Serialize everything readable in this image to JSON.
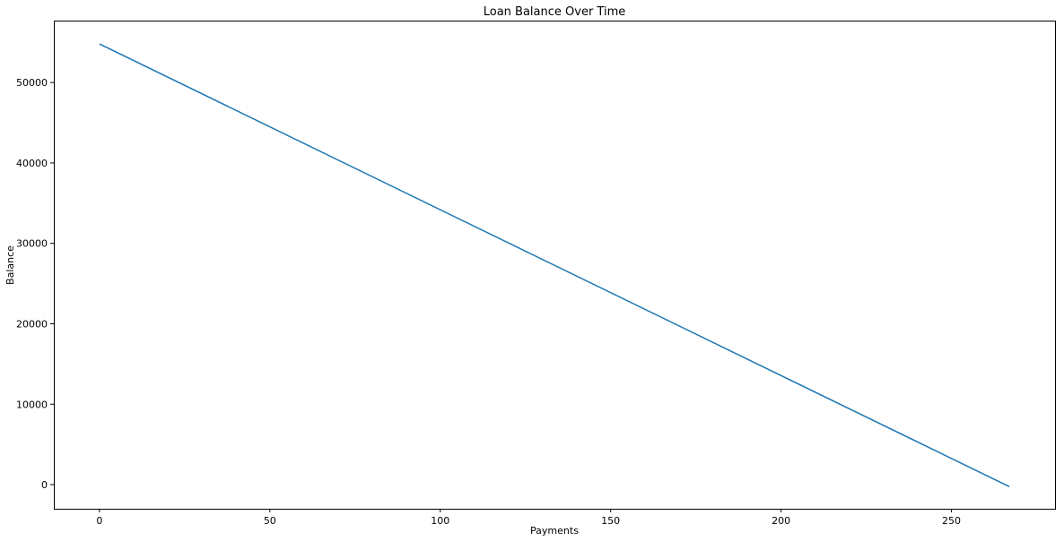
{
  "chart_data": {
    "type": "line",
    "title": "Loan Balance Over Time",
    "xlabel": "Payments",
    "ylabel": "Balance",
    "xlim": [
      -13.4,
      280.4
    ],
    "ylim": [
      -3000,
      57700
    ],
    "xticks": [
      0,
      50,
      100,
      150,
      200,
      250
    ],
    "yticks": [
      0,
      10000,
      20000,
      30000,
      40000,
      50000
    ],
    "grid": false,
    "colors": {
      "line": "#1f77b4"
    },
    "series": [
      {
        "points": [
          [
            0,
            54800
          ],
          [
            267,
            -250
          ]
        ]
      }
    ]
  }
}
